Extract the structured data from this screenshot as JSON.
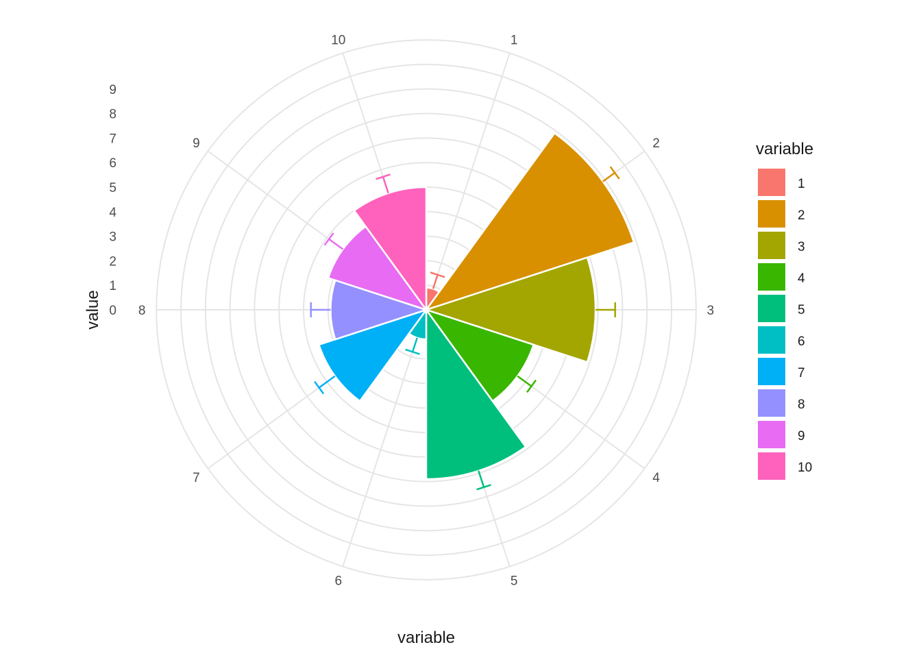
{
  "chart_data": {
    "type": "bar",
    "coord": "polar",
    "xlabel": "variable",
    "ylabel": "value",
    "categories": [
      "1",
      "2",
      "3",
      "4",
      "5",
      "6",
      "7",
      "8",
      "9",
      "10"
    ],
    "values": [
      0.9,
      8.9,
      6.9,
      4.6,
      6.9,
      1.2,
      4.6,
      3.9,
      4.2,
      5.0
    ],
    "errors": [
      0.6,
      0.6,
      0.8,
      0.7,
      0.7,
      0.6,
      0.8,
      0.8,
      0.7,
      0.7
    ],
    "colors": [
      "#F8766D",
      "#D89000",
      "#A3A500",
      "#39B600",
      "#00BF7D",
      "#00BFC4",
      "#00B0F6",
      "#9590FF",
      "#E76BF3",
      "#FF62BC"
    ],
    "ylim": [
      0,
      11
    ],
    "y_ticks": [
      "0",
      "1",
      "2",
      "3",
      "4",
      "5",
      "6",
      "7",
      "8",
      "9"
    ],
    "grid": true,
    "legend": {
      "title": "variable",
      "position": "right",
      "labels": [
        "1",
        "2",
        "3",
        "4",
        "5",
        "6",
        "7",
        "8",
        "9",
        "10"
      ]
    }
  }
}
